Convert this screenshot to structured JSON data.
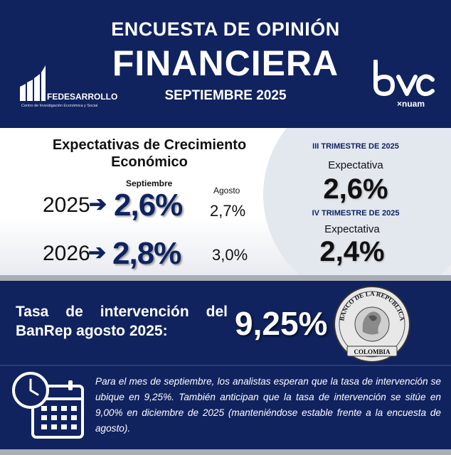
{
  "header": {
    "title_line1": "ENCUESTA DE OPINIÓN",
    "title_line2": "FINANCIERA",
    "date": "SEPTIEMBRE 2025",
    "left_logo": {
      "name": "FEDESARROLLO",
      "subtitle": "Centro de Investigación Económica y Social"
    },
    "right_logo": {
      "name": "bvc",
      "subtitle": "×nuam"
    }
  },
  "growth": {
    "heading": "Expectativas de Crecimiento Económico",
    "current_label": "Septiembre",
    "previous_label": "Agosto",
    "rows": [
      {
        "year": "2025",
        "current": "2,6%",
        "previous": "2,7%"
      },
      {
        "year": "2026",
        "current": "2,8%",
        "previous": "3,0%"
      }
    ],
    "quarters": [
      {
        "heading": "III TRIMESTRE DE 2025",
        "label": "Expectativa",
        "value": "2,6%"
      },
      {
        "heading": "IV TRIMESTRE DE 2025",
        "label": "Expectativa",
        "value": "2,4%"
      }
    ]
  },
  "rate": {
    "label_line1": "Tasa de intervención del",
    "label_line2": "BanRep agosto 2025:",
    "value": "9,25%",
    "seal_top": "BANCO DE LA REPUBLICA",
    "seal_bottom": "COLOMBIA"
  },
  "note": "Para el mes de septiembre, los analistas esperan que la tasa de intervención se ubique en 9,25%. También anticipan que la tasa de intervención se sitúe en 9,00% en diciembre de 2025 (manteniéndose estable frente a la encuesta de agosto).",
  "colors": {
    "navy": "#10235f",
    "accent": "#0f2360",
    "gray": "#a9adb6"
  },
  "icons": [
    "arrow-right-icon",
    "clock-icon",
    "calendar-icon",
    "bank-seal"
  ]
}
